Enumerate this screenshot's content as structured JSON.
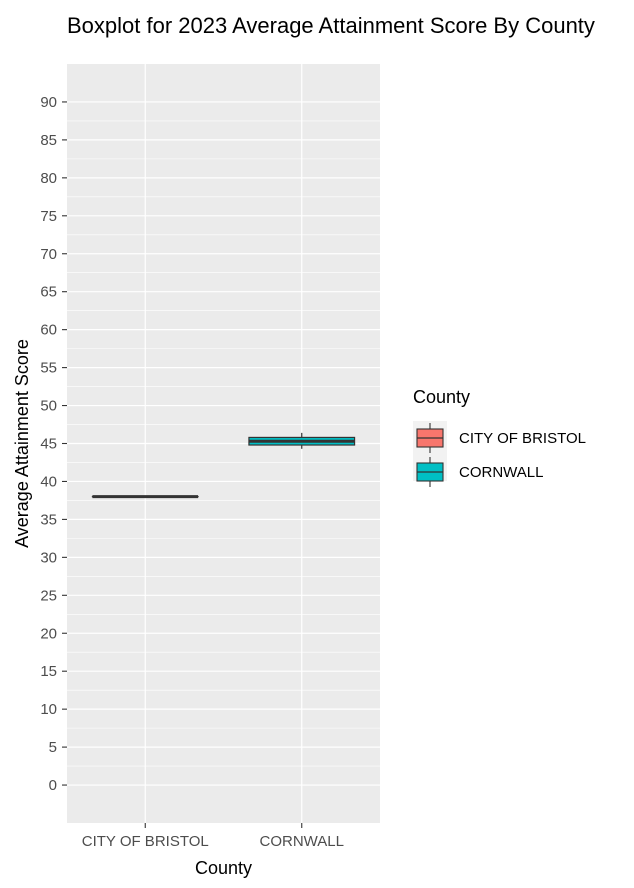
{
  "chart_data": {
    "type": "boxplot",
    "title": "Boxplot for 2023 Average Attainment Score By County",
    "xlabel": "County",
    "ylabel": "Average Attainment Score",
    "categories": [
      "CITY OF BRISTOL",
      "CORNWALL"
    ],
    "ylim": [
      -5,
      95
    ],
    "yticks": [
      0,
      5,
      10,
      15,
      20,
      25,
      30,
      35,
      40,
      45,
      50,
      55,
      60,
      65,
      70,
      75,
      80,
      85,
      90
    ],
    "grid": true,
    "legend": {
      "title": "County",
      "position": "right",
      "entries": [
        "CITY OF BRISTOL",
        "CORNWALL"
      ]
    },
    "series": [
      {
        "name": "CITY OF BRISTOL",
        "color": "#F8766D",
        "min": 38.0,
        "q1": 38.0,
        "median": 38.0,
        "q3": 38.0,
        "max": 38.0
      },
      {
        "name": "CORNWALL",
        "color": "#00BFC4",
        "min": 44.3,
        "q1": 44.8,
        "median": 45.3,
        "q3": 45.8,
        "max": 46.4
      }
    ]
  }
}
